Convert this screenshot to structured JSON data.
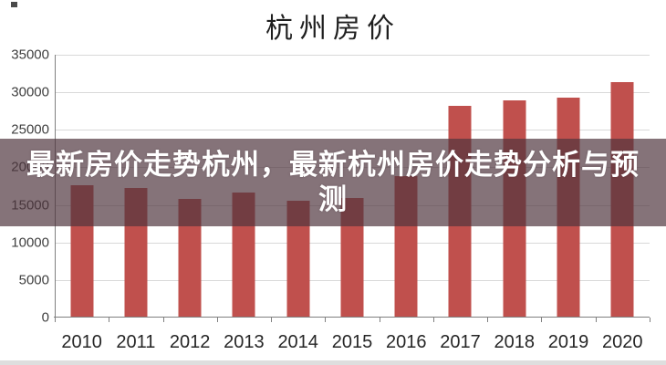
{
  "title": "杭州房价",
  "overlay": {
    "headline_full": "最新房价走势杭州，最新杭州房价走势分析与预测",
    "line1": "最新房价走势杭州，最新杭州房价走势分析与预",
    "line2": "测",
    "background_color": "#4E343D",
    "background_opacity": 0.69,
    "text_color": "#ffffff"
  },
  "chart_data": {
    "type": "bar",
    "title": "杭州房价",
    "categories": [
      "2010",
      "2011",
      "2012",
      "2013",
      "2014",
      "2015",
      "2016",
      "2017",
      "2018",
      "2019",
      "2020"
    ],
    "values": [
      17500,
      17100,
      15700,
      16500,
      15400,
      15800,
      18700,
      28100,
      28800,
      29200,
      31200
    ],
    "xlabel": "",
    "ylabel": "",
    "ylim": [
      0,
      35000
    ],
    "ytick_step": 5000,
    "ytick_labels": [
      "0",
      "5000",
      "10000",
      "15000",
      "20000",
      "25000",
      "30000",
      "35000"
    ],
    "grid": true,
    "legend": "none",
    "bar_color": "#c0504d",
    "gridline_color": "#d9d9d9",
    "axis_color": "#7f7f7f",
    "tick_label_color": "#404040",
    "x_label_color": "#262626"
  }
}
